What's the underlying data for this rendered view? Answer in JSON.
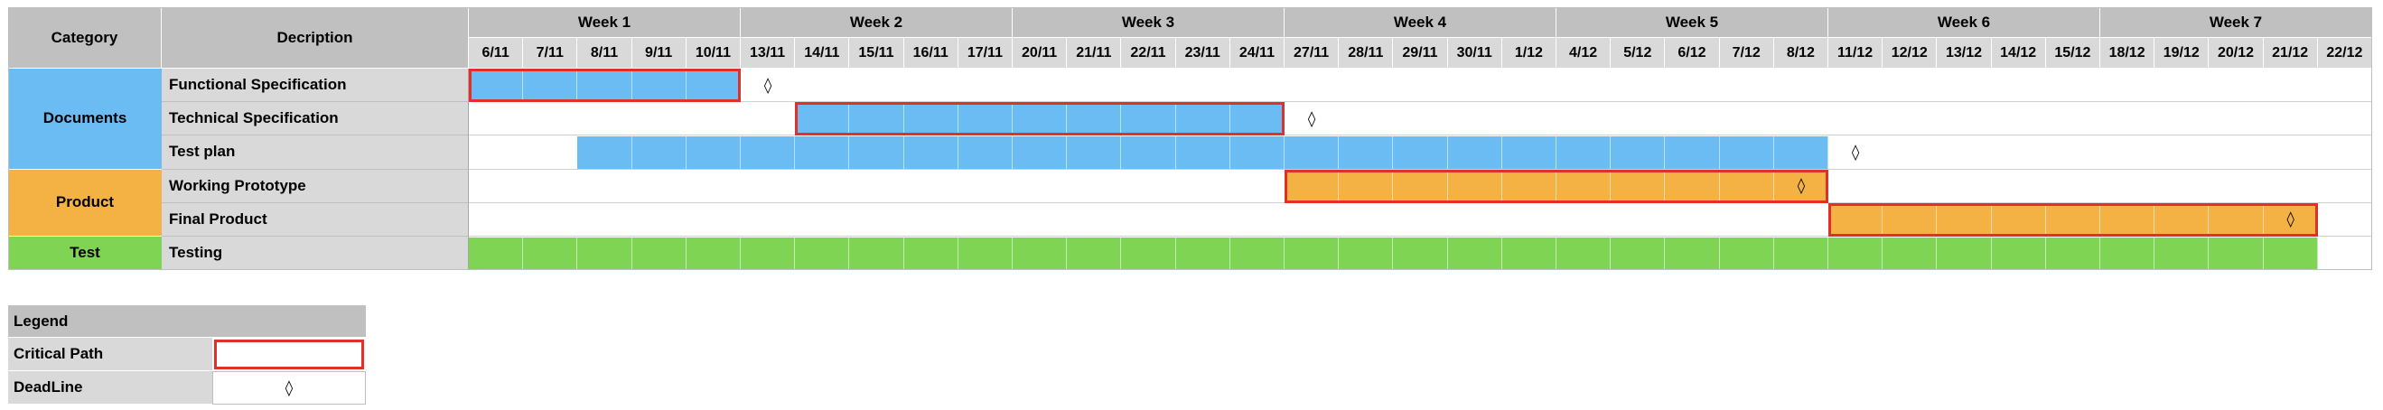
{
  "headers": {
    "category": "Category",
    "description": "Decription"
  },
  "weeks": [
    "Week 1",
    "Week 2",
    "Week 3",
    "Week 4",
    "Week 5",
    "Week 6",
    "Week 7"
  ],
  "days": [
    "6/11",
    "7/11",
    "8/11",
    "9/11",
    "10/11",
    "13/11",
    "14/11",
    "15/11",
    "16/11",
    "17/11",
    "20/11",
    "21/11",
    "22/11",
    "23/11",
    "24/11",
    "27/11",
    "28/11",
    "29/11",
    "30/11",
    "1/12",
    "4/12",
    "5/12",
    "6/12",
    "7/12",
    "8/12",
    "11/12",
    "12/12",
    "13/12",
    "14/12",
    "15/12",
    "18/12",
    "19/12",
    "20/12",
    "21/12",
    "22/12"
  ],
  "categories": [
    {
      "label": "Documents",
      "color": "#6cbcf4",
      "rows": 3
    },
    {
      "label": "Product",
      "color": "#f4b244",
      "rows": 2
    },
    {
      "label": "Test",
      "color": "#7fd453",
      "rows": 1
    }
  ],
  "tasks": [
    {
      "name": "Functional Specification",
      "start": "6/11",
      "end": "10/11",
      "color": "#6cbcf4",
      "critical": true,
      "deadline": "13/11"
    },
    {
      "name": "Technical Specification",
      "start": "14/11",
      "end": "24/11",
      "color": "#6cbcf4",
      "critical": true,
      "deadline": "27/11"
    },
    {
      "name": "Test plan",
      "start": "8/11",
      "end": "8/12",
      "color": "#6cbcf4",
      "critical": false,
      "deadline": "11/12"
    },
    {
      "name": "Working Prototype",
      "start": "27/11",
      "end": "8/12",
      "color": "#f4b244",
      "critical": true,
      "deadline": "8/12"
    },
    {
      "name": "Final Product",
      "start": "11/12",
      "end": "21/12",
      "color": "#f4b244",
      "critical": true,
      "deadline": "21/12"
    },
    {
      "name": "Testing",
      "start": "6/11",
      "end": "21/12",
      "color": "#7fd453",
      "critical": false,
      "deadline": null
    }
  ],
  "deadline_symbol": "◊",
  "legend": {
    "title": "Legend",
    "critical_label": "Critical Path",
    "deadline_label": "DeadLine",
    "deadline_symbol": "◊"
  }
}
